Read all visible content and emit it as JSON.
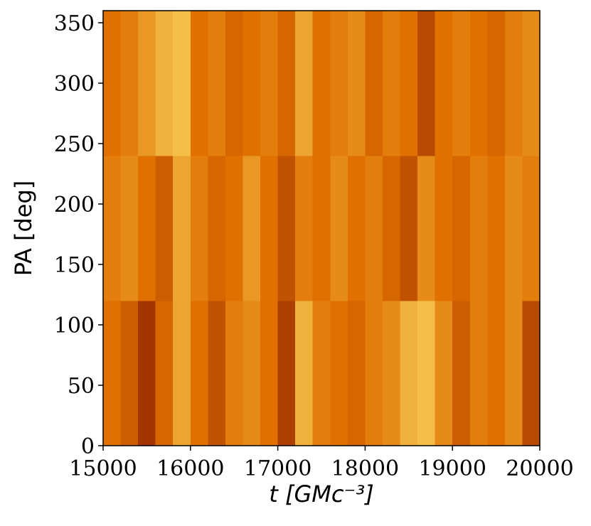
{
  "chart_data": {
    "type": "heatmap",
    "x_label": "t [GMc⁻³]",
    "y_label": "PA [deg]",
    "xlim": [
      15000,
      20000
    ],
    "ylim": [
      0,
      360
    ],
    "xticks": [
      15000,
      16000,
      17000,
      18000,
      19000,
      20000
    ],
    "yticks": [
      0,
      50,
      100,
      150,
      200,
      250,
      300,
      350
    ],
    "x_edges": [
      15000,
      15200,
      15400,
      15600,
      15800,
      16000,
      16200,
      16400,
      16600,
      16800,
      17000,
      17200,
      17400,
      17600,
      17800,
      18000,
      18200,
      18400,
      18600,
      18800,
      19000,
      19200,
      19400,
      19600,
      19800,
      20000
    ],
    "y_edges": [
      0,
      120,
      240,
      360
    ],
    "colormap": [
      "#7a1000",
      "#e07000",
      "#fff47a"
    ],
    "z": [
      [
        0.5,
        0.4,
        0.2,
        0.45,
        0.7,
        0.5,
        0.35,
        0.55,
        0.6,
        0.5,
        0.25,
        0.75,
        0.55,
        0.5,
        0.45,
        0.55,
        0.6,
        0.75,
        0.8,
        0.6,
        0.4,
        0.55,
        0.5,
        0.6,
        0.3
      ],
      [
        0.55,
        0.6,
        0.5,
        0.4,
        0.7,
        0.55,
        0.45,
        0.5,
        0.65,
        0.5,
        0.35,
        0.55,
        0.5,
        0.6,
        0.5,
        0.55,
        0.45,
        0.35,
        0.6,
        0.5,
        0.45,
        0.55,
        0.5,
        0.6,
        0.55
      ],
      [
        0.5,
        0.55,
        0.65,
        0.75,
        0.8,
        0.5,
        0.55,
        0.45,
        0.5,
        0.55,
        0.45,
        0.7,
        0.5,
        0.55,
        0.6,
        0.45,
        0.55,
        0.5,
        0.3,
        0.5,
        0.55,
        0.5,
        0.45,
        0.55,
        0.6
      ]
    ]
  }
}
